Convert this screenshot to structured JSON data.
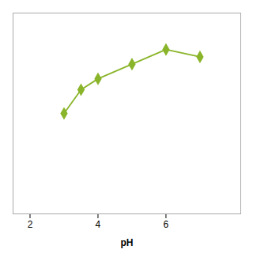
{
  "chart_data": {
    "type": "line",
    "xlabel": "pH",
    "x": [
      3,
      3.5,
      4,
      5,
      6,
      7
    ],
    "values": [
      55,
      68,
      74,
      82,
      90,
      86
    ],
    "color": "#8ab52a",
    "marker": "diamond",
    "xlim": [
      1.5,
      8.2
    ],
    "ylim": [
      0,
      110
    ],
    "xticks": [
      2,
      4,
      6
    ],
    "tick_labels": "x"
  }
}
